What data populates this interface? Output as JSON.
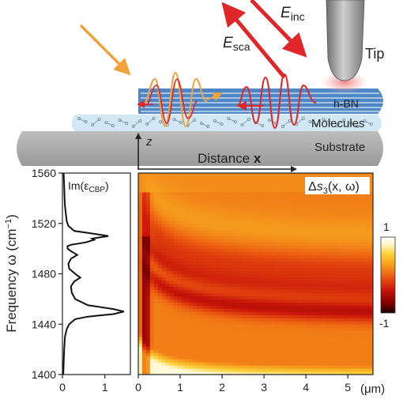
{
  "colors": {
    "hbn_blue": "#4f86c6",
    "hbn_line": "#dbe9f7",
    "molecules_fill": "#d2e8f4",
    "substrate_gray": "#a9a9a9",
    "arrow_red": "#e1262a",
    "arrow_orange": "#f2a23b",
    "tip_gray": "#8a8a8a",
    "tip_glow": "#f3a2a2"
  },
  "schematic": {
    "label_e_inc": "E",
    "label_e_inc_sub": "inc",
    "label_e_sca": "E",
    "label_e_sca_sub": "sca",
    "label_tip": "Tip",
    "label_hbn": "h-BN",
    "label_molecules": "Molecules",
    "label_substrate": "Substrate",
    "label_z": "z",
    "label_distance": "Distance ",
    "label_distance_var": "x"
  },
  "chart_data": [
    {
      "type": "line",
      "title": "Im(εCBP)",
      "legend_text": "Im(ε",
      "legend_sub": "CBP",
      "legend_close": ")",
      "xlabel": "",
      "ylabel": "Frequency ω (cm⁻¹)",
      "ylabel_main": "Frequency ω (cm",
      "ylabel_sup": "−1",
      "ylabel_close": ")",
      "xlim": [
        0,
        1.6
      ],
      "ylim": [
        1400,
        1560
      ],
      "x_ticks": [
        "0",
        "1"
      ],
      "x_tick_values": [
        0,
        1
      ],
      "y_ticks": [
        "1400",
        "1440",
        "1480",
        "1520",
        "1560"
      ],
      "y_tick_values": [
        1400,
        1440,
        1480,
        1520,
        1560
      ],
      "series": [
        {
          "x": [
            0.02,
            0.04,
            0.06,
            0.1,
            0.16,
            0.3,
            0.6,
            1.2,
            1.45,
            1.2,
            0.6,
            0.3,
            0.22,
            0.2,
            0.28,
            0.42,
            0.3,
            0.16,
            0.14,
            0.2,
            0.35,
            0.2,
            0.12,
            0.12,
            0.2,
            0.55,
            0.75,
            0.7,
            1.08,
            0.7,
            0.28,
            0.14,
            0.1,
            0.08,
            0.06,
            0.05,
            0.04,
            0.03
          ],
          "y": [
            1400,
            1420,
            1430,
            1436,
            1440,
            1444,
            1446,
            1448,
            1450,
            1452,
            1455,
            1460,
            1465,
            1470,
            1474,
            1477,
            1480,
            1484,
            1488,
            1492,
            1495,
            1498,
            1500,
            1502,
            1503,
            1505,
            1507,
            1508,
            1510,
            1512,
            1514,
            1518,
            1522,
            1528,
            1534,
            1540,
            1550,
            1560
          ]
        }
      ]
    },
    {
      "type": "heatmap",
      "title": "Δs3(x, ω)",
      "title_delta": "Δ",
      "title_s": "s",
      "title_sub": "3",
      "title_args": "(x, ω)",
      "xlabel": "(μm)",
      "x_ticks": [
        "0",
        "1",
        "2",
        "3",
        "4",
        "5"
      ],
      "x_tick_values": [
        0,
        1,
        2,
        3,
        4,
        5
      ],
      "xlim": [
        0,
        5.6
      ],
      "ylim": [
        1400,
        1560
      ],
      "colorbar": {
        "max_label": "1",
        "min_label": "-1",
        "range": [
          -1,
          1
        ]
      },
      "colormap": [
        "#1a0000",
        "#7a0000",
        "#c8140a",
        "#ec5a10",
        "#f6a21e",
        "#fbd23a",
        "#fff6c8",
        "#ffffff"
      ],
      "fringe_branches": [
        {
          "name": "",
          "asymptote_freq": 1445,
          "start_freq": 1495
        },
        {
          "name": "",
          "asymptote_freq": 1458,
          "start_freq": 1515
        },
        {
          "name": "",
          "asymptote_freq": 1472,
          "start_freq": 1530
        },
        {
          "name": "",
          "asymptote_freq": 1487,
          "start_freq": 1545
        }
      ]
    }
  ]
}
